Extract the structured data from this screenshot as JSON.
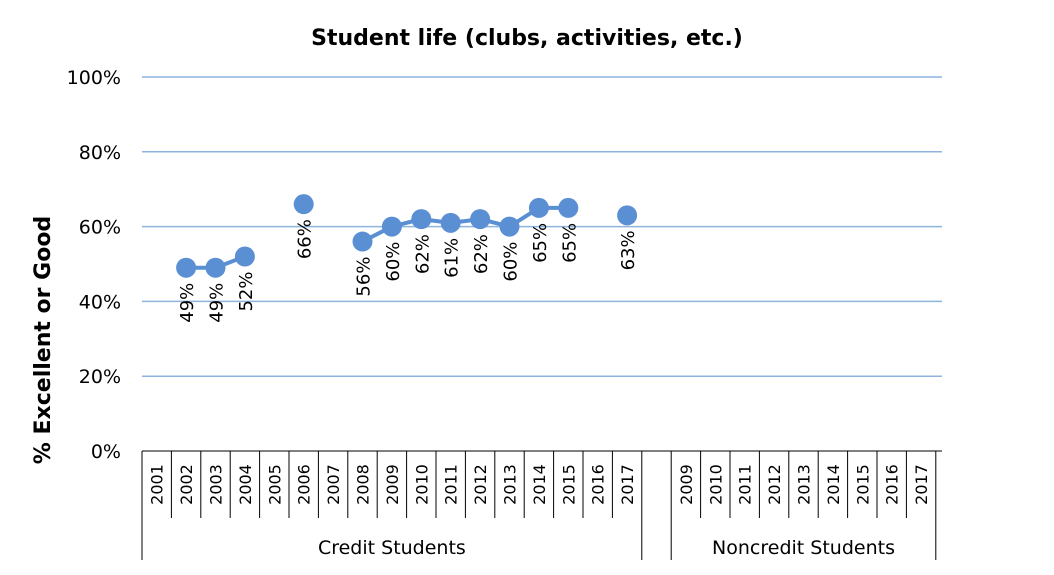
{
  "chart_data": {
    "type": "line",
    "title": "Student life (clubs, activities, etc.)",
    "ylabel": "% Excellent or Good",
    "ylim": [
      0,
      100
    ],
    "yticks": [
      "0%",
      "20%",
      "40%",
      "60%",
      "80%",
      "100%"
    ],
    "grid": true,
    "groups": [
      {
        "name": "Credit Students",
        "categories": [
          "2001",
          "2002",
          "2003",
          "2004",
          "2005",
          "2006",
          "2007",
          "2008",
          "2009",
          "2010",
          "2011",
          "2012",
          "2013",
          "2014",
          "2015",
          "2016",
          "2017"
        ],
        "values": [
          null,
          49,
          49,
          52,
          null,
          66,
          null,
          56,
          60,
          62,
          61,
          62,
          60,
          65,
          65,
          null,
          63
        ],
        "labels": [
          "",
          "49%",
          "49%",
          "52%",
          "",
          "66%",
          "",
          "56%",
          "60%",
          "62%",
          "61%",
          "62%",
          "60%",
          "65%",
          "65%",
          "",
          "63%"
        ]
      },
      {
        "name": "Noncredit Students",
        "categories": [
          "2009",
          "2010",
          "2011",
          "2012",
          "2013",
          "2014",
          "2015",
          "2016",
          "2017"
        ],
        "values": [
          null,
          null,
          null,
          null,
          null,
          null,
          null,
          null,
          null
        ],
        "labels": [
          "",
          "",
          "",
          "",
          "",
          "",
          "",
          "",
          ""
        ]
      }
    ],
    "colors": {
      "series": "#5b8fd4",
      "grid": "#8eb4dd"
    }
  }
}
